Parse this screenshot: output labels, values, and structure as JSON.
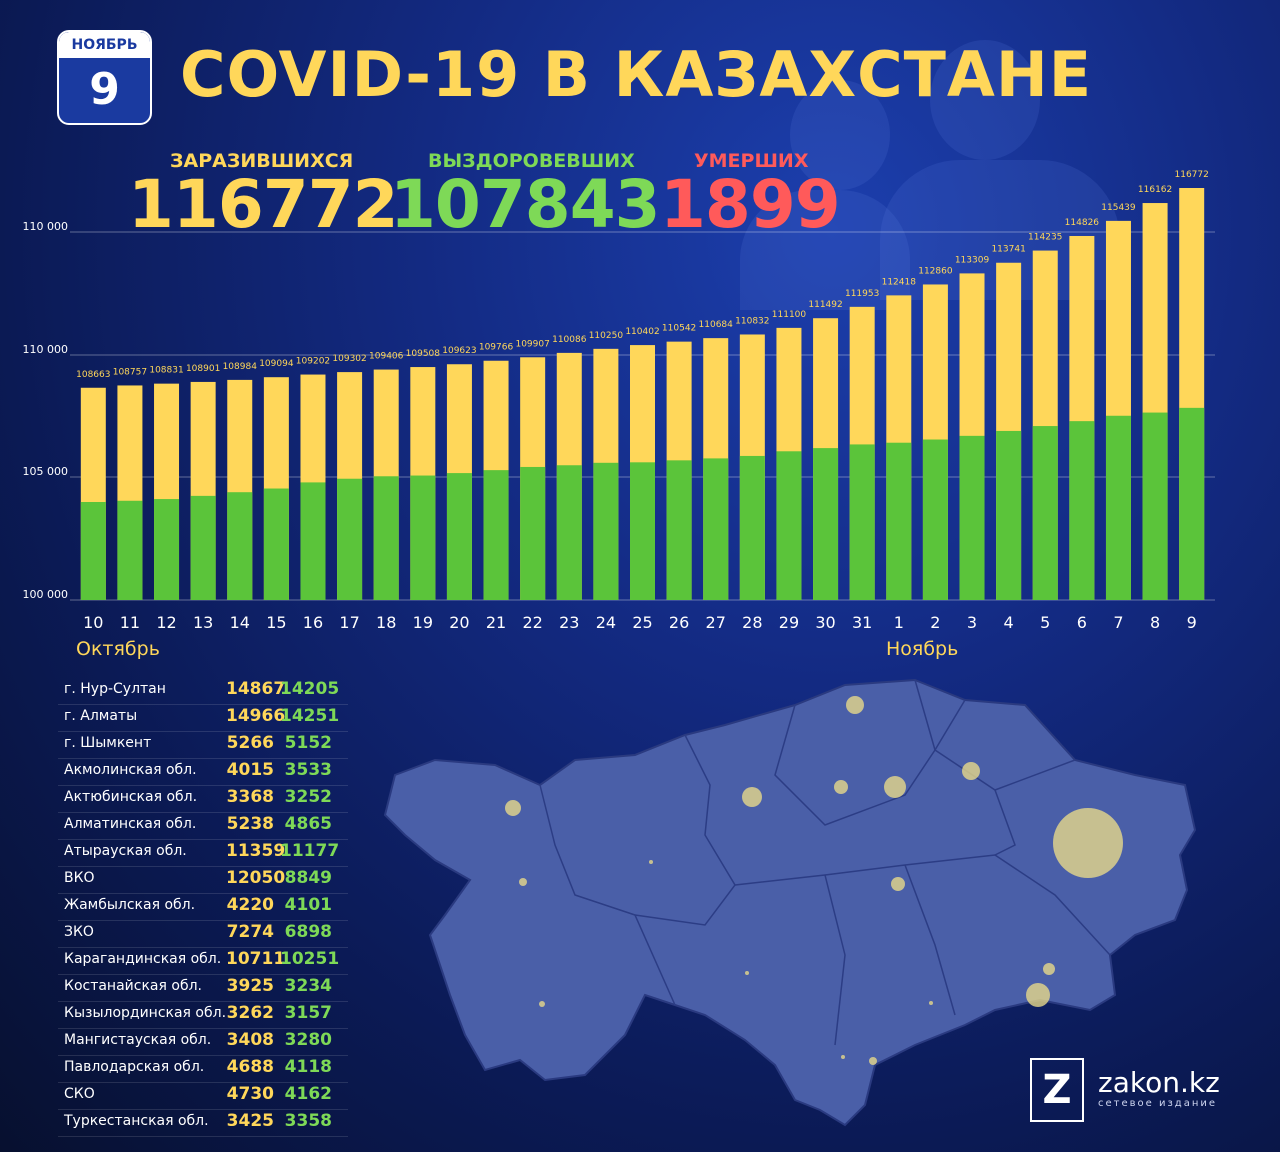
{
  "header": {
    "calendar_month": "НОЯБРЬ",
    "calendar_day": "9",
    "title": "COVID-19 В КАЗАХСТАНЕ"
  },
  "stats": {
    "infected_label": "ЗАРАЗИВШИХСЯ",
    "infected_value": "116772",
    "recovered_label": "ВЫЗДОРОВЕВШИХ",
    "recovered_value": "107843",
    "deaths_label": "УМЕРШИХ",
    "deaths_value": "1899"
  },
  "colors": {
    "infected": "#ffd75a",
    "recovered": "#5bc43a",
    "deaths": "#ff5a5a"
  },
  "chart_data": {
    "type": "bar",
    "categories": [
      "10",
      "11",
      "12",
      "13",
      "14",
      "15",
      "16",
      "17",
      "18",
      "19",
      "20",
      "21",
      "22",
      "23",
      "24",
      "25",
      "26",
      "27",
      "28",
      "29",
      "30",
      "31",
      "1",
      "2",
      "3",
      "4",
      "5",
      "6",
      "7",
      "8",
      "9"
    ],
    "month_labels": {
      "start": "Октябрь",
      "end": "Ноябрь"
    },
    "series": [
      {
        "values": [
          108663,
          108757,
          108831,
          108901,
          108984,
          109094,
          109202,
          109302,
          109406,
          109508,
          109623,
          109766,
          109907,
          110086,
          110250,
          110402,
          110542,
          110684,
          110832,
          111100,
          111492,
          111953,
          112418,
          112860,
          113309,
          113741,
          114235,
          114826,
          115439,
          116162,
          116772
        ]
      },
      {
        "values": [
          104000,
          104050,
          104120,
          104250,
          104400,
          104550,
          104800,
          104950,
          105050,
          105080,
          105180,
          105300,
          105430,
          105500,
          105600,
          105620,
          105700,
          105780,
          105880,
          106070,
          106200,
          106350,
          106420,
          106550,
          106700,
          106900,
          107100,
          107300,
          107520,
          107650,
          107843
        ]
      }
    ],
    "y_ticks": [
      "100 000",
      "105 000",
      "110 000",
      "110 000"
    ],
    "ylim": [
      100000,
      116772
    ],
    "grid": true
  },
  "regions": [
    {
      "name": "г. Нур-Султан",
      "infected": "14867",
      "recovered": "14205"
    },
    {
      "name": "г. Алматы",
      "infected": "14966",
      "recovered": "14251"
    },
    {
      "name": "г. Шымкент",
      "infected": "5266",
      "recovered": "5152"
    },
    {
      "name": "Акмолинская обл.",
      "infected": "4015",
      "recovered": "3533"
    },
    {
      "name": "Актюбинская обл.",
      "infected": "3368",
      "recovered": "3252"
    },
    {
      "name": "Алматинская обл.",
      "infected": "5238",
      "recovered": "4865"
    },
    {
      "name": "Атырауская обл.",
      "infected": "11359",
      "recovered": "11177"
    },
    {
      "name": "ВКО",
      "infected": "12050",
      "recovered": "8849"
    },
    {
      "name": "Жамбылская обл.",
      "infected": "4220",
      "recovered": "4101"
    },
    {
      "name": "ЗКО",
      "infected": "7274",
      "recovered": "6898"
    },
    {
      "name": "Карагандинская обл.",
      "infected": "10711",
      "recovered": "10251"
    },
    {
      "name": "Костанайская обл.",
      "infected": "3925",
      "recovered": "3234"
    },
    {
      "name": "Кызылординская обл.",
      "infected": "3262",
      "recovered": "3157"
    },
    {
      "name": "Мангистауская обл.",
      "infected": "3408",
      "recovered": "3280"
    },
    {
      "name": "Павлодарская обл.",
      "infected": "4688",
      "recovered": "4118"
    },
    {
      "name": "СКО",
      "infected": "4730",
      "recovered": "4162"
    },
    {
      "name": "Туркестанская обл.",
      "infected": "3425",
      "recovered": "3358"
    }
  ],
  "logo": {
    "mark": "Z",
    "name": "zakon.kz",
    "subtitle": "сетевое издание"
  }
}
